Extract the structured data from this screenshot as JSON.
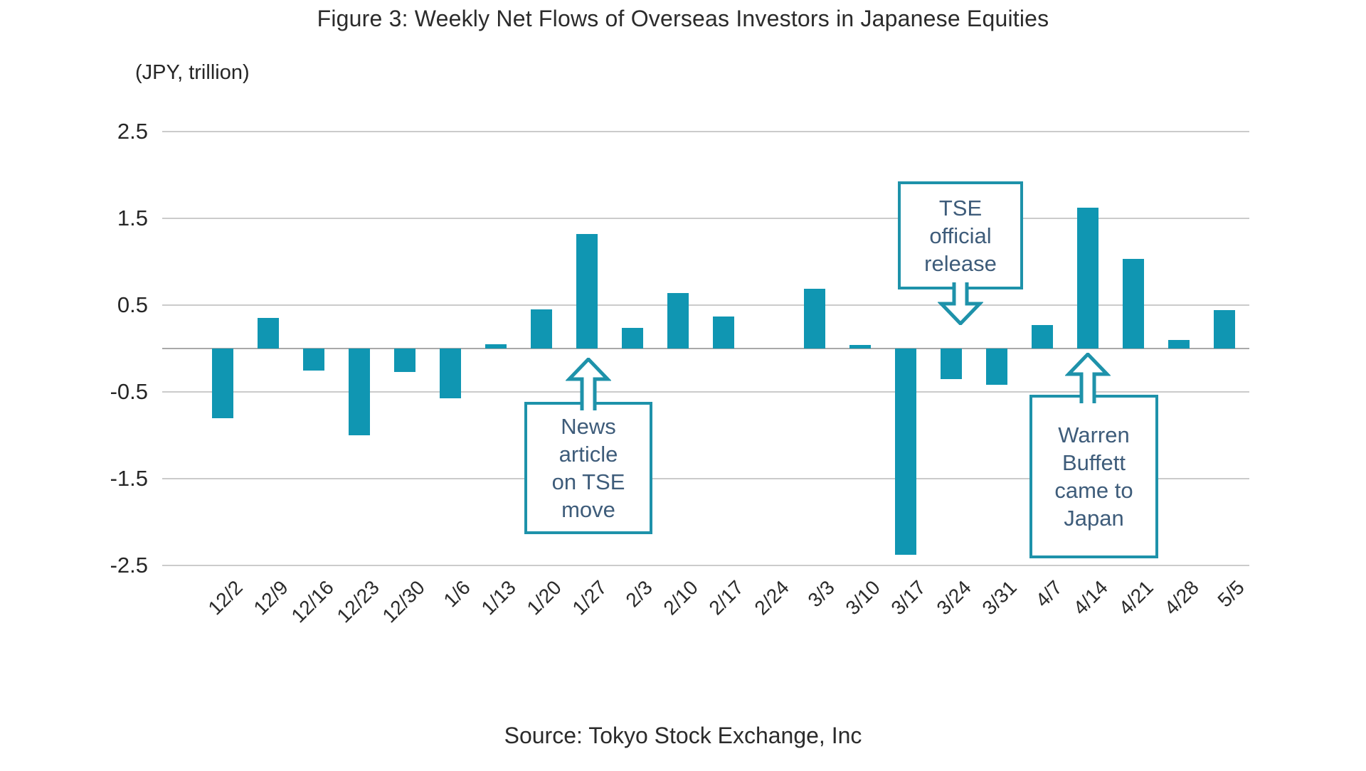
{
  "title": "Figure 3: Weekly Net Flows of Overseas Investors in Japanese Equities",
  "units_label": "(JPY, trillion)",
  "source": "Source: Tokyo Stock Exchange, Inc",
  "colors": {
    "bar": "#1096b2",
    "annotation_border": "#1e92aa",
    "annotation_text": "#3e5c7a",
    "gridline": "#cbcbcb",
    "zero_line": "#a9a9a9",
    "text": "#2b2b2b"
  },
  "chart_data": {
    "type": "bar",
    "title": "Figure 3: Weekly Net Flows of Overseas Investors in Japanese Equities",
    "xlabel": "",
    "ylabel": "(JPY, trillion)",
    "ylim": [
      -2.5,
      2.5
    ],
    "yticks": [
      2.5,
      1.5,
      0.5,
      -0.5,
      -1.5,
      -2.5
    ],
    "grid": true,
    "legend": "none",
    "categories": [
      "12/2",
      "12/9",
      "12/16",
      "12/23",
      "12/30",
      "1/6",
      "1/13",
      "1/20",
      "1/27",
      "2/3",
      "2/10",
      "2/17",
      "2/24",
      "3/3",
      "3/10",
      "3/17",
      "3/24",
      "3/31",
      "4/7",
      "4/14",
      "4/21",
      "4/28",
      "5/5"
    ],
    "values": [
      -0.8,
      0.35,
      -0.25,
      -1.0,
      -0.27,
      -0.57,
      0.05,
      0.45,
      1.32,
      0.24,
      0.64,
      0.37,
      0.0,
      0.69,
      0.04,
      -2.38,
      -0.35,
      -0.42,
      0.27,
      1.62,
      1.03,
      0.1,
      0.44
    ],
    "annotations": [
      {
        "text_lines": [
          "News",
          "article",
          "on TSE",
          "move"
        ],
        "target_category": "1/27",
        "arrow_direction": "up"
      },
      {
        "text_lines": [
          "TSE",
          "official",
          "release"
        ],
        "target_category": "3/24",
        "arrow_direction": "down"
      },
      {
        "text_lines": [
          "Warren",
          "Buffett",
          "came to",
          "Japan"
        ],
        "target_category": "4/14",
        "arrow_direction": "up"
      }
    ]
  }
}
